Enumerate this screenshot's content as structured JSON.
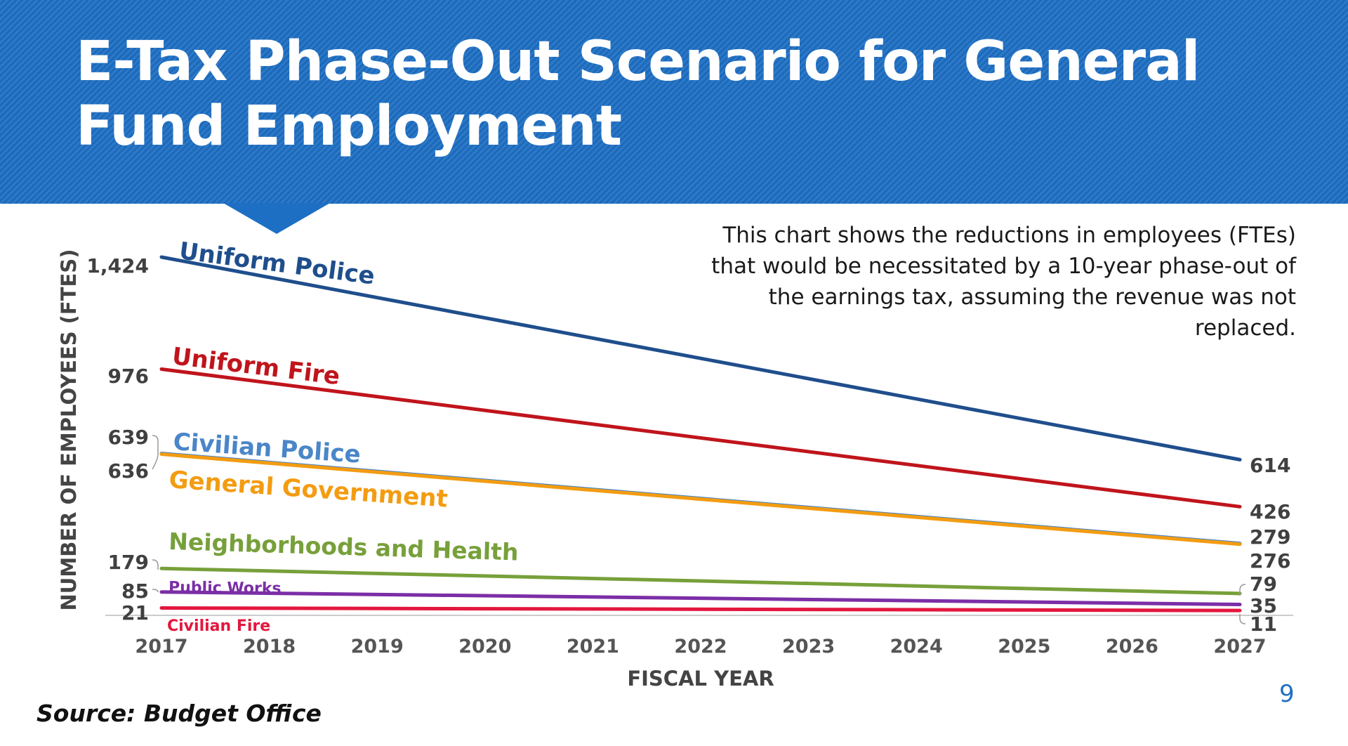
{
  "slide": {
    "title": "E-Tax Phase-Out Scenario for General Fund Employment",
    "description": "This chart shows the reductions in employees (FTEs) that would be necessitated by a 10-year phase-out of the earnings tax, assuming the revenue was not replaced.",
    "source": "Source: Budget Office",
    "page_number": "9",
    "colors": {
      "banner": "#1d6fc4",
      "title_text": "#ffffff",
      "page_number": "#1d6fc4"
    }
  },
  "chart_data": {
    "type": "line",
    "xlabel": "FISCAL YEAR",
    "ylabel": "NUMBER OF EMPLOYEES (FTES)",
    "x": [
      "2017",
      "2018",
      "2019",
      "2020",
      "2021",
      "2022",
      "2023",
      "2024",
      "2025",
      "2026",
      "2027"
    ],
    "ylim": [
      0,
      1450
    ],
    "grid": false,
    "legend": "inline labels",
    "series": [
      {
        "name": "Uniform Police",
        "start": 1424,
        "end": 614,
        "start_label": "1,424",
        "end_label": "614",
        "color": "#1f4e8c"
      },
      {
        "name": "Uniform Fire",
        "start": 976,
        "end": 426,
        "start_label": "976",
        "end_label": "426",
        "color": "#c0141c"
      },
      {
        "name": "Civilian Police",
        "start": 639,
        "end": 279,
        "start_label": "639",
        "end_label": "279",
        "color": "#4a86c8"
      },
      {
        "name": "General Government",
        "start": 636,
        "end": 276,
        "start_label": "636",
        "end_label": "276",
        "color": "#f39c12"
      },
      {
        "name": "Neighborhoods and Health",
        "start": 179,
        "end": 79,
        "start_label": "179",
        "end_label": "79",
        "color": "#77a03a"
      },
      {
        "name": "Public Works",
        "start": 85,
        "end": 35,
        "start_label": "85",
        "end_label": "35",
        "color": "#7b2ea6"
      },
      {
        "name": "Civilian Fire",
        "start": 21,
        "end": 11,
        "start_label": "21",
        "end_label": "11",
        "color": "#e3173e"
      }
    ]
  }
}
